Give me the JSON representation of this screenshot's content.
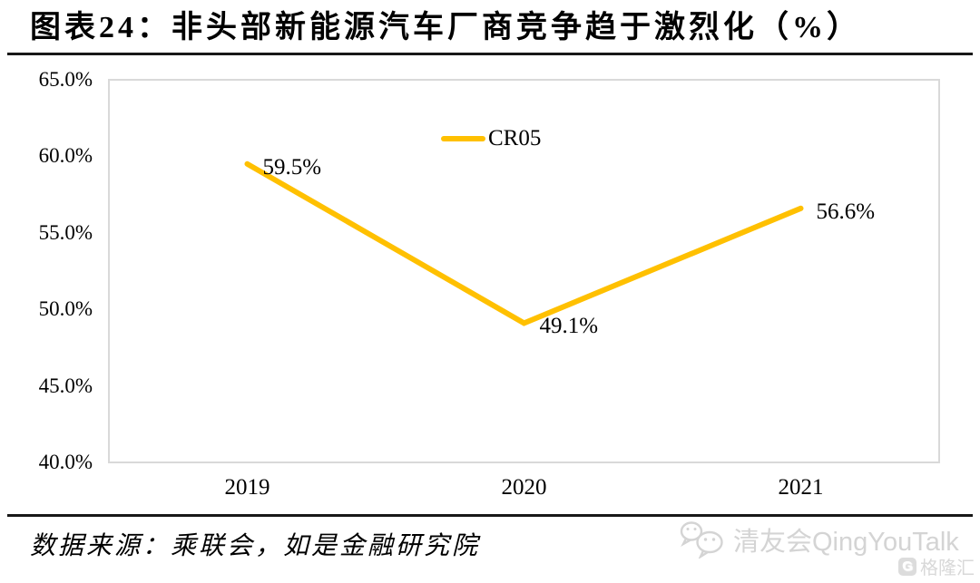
{
  "header": {
    "title": "图表24：非头部新能源汽车厂商竞争趋于激烈化（%）"
  },
  "chart_data": {
    "type": "line",
    "title": "图表24：非头部新能源汽车厂商竞争趋于激烈化（%）",
    "categories": [
      "2019",
      "2020",
      "2021"
    ],
    "series": [
      {
        "name": "CR05",
        "values": [
          59.5,
          49.1,
          56.6
        ]
      }
    ],
    "value_labels": [
      "59.5%",
      "49.1%",
      "56.6%"
    ],
    "xlabel": "",
    "ylabel": "",
    "ylim": [
      40,
      65
    ],
    "ytick_values": [
      65,
      60,
      55,
      50,
      45,
      40
    ],
    "ytick_labels": [
      "65.0%",
      "60.0%",
      "55.0%",
      "50.0%",
      "45.0%",
      "40.0%"
    ],
    "grid": false,
    "legend_position": "top-center-inside",
    "line_color": "#FFC000"
  },
  "footer": {
    "source": "数据来源：乘联会，如是金融研究院",
    "watermark": "清友会QingYouTalk",
    "gelonghui": "格隆汇",
    "gelonghui_icon_letter": "G"
  }
}
